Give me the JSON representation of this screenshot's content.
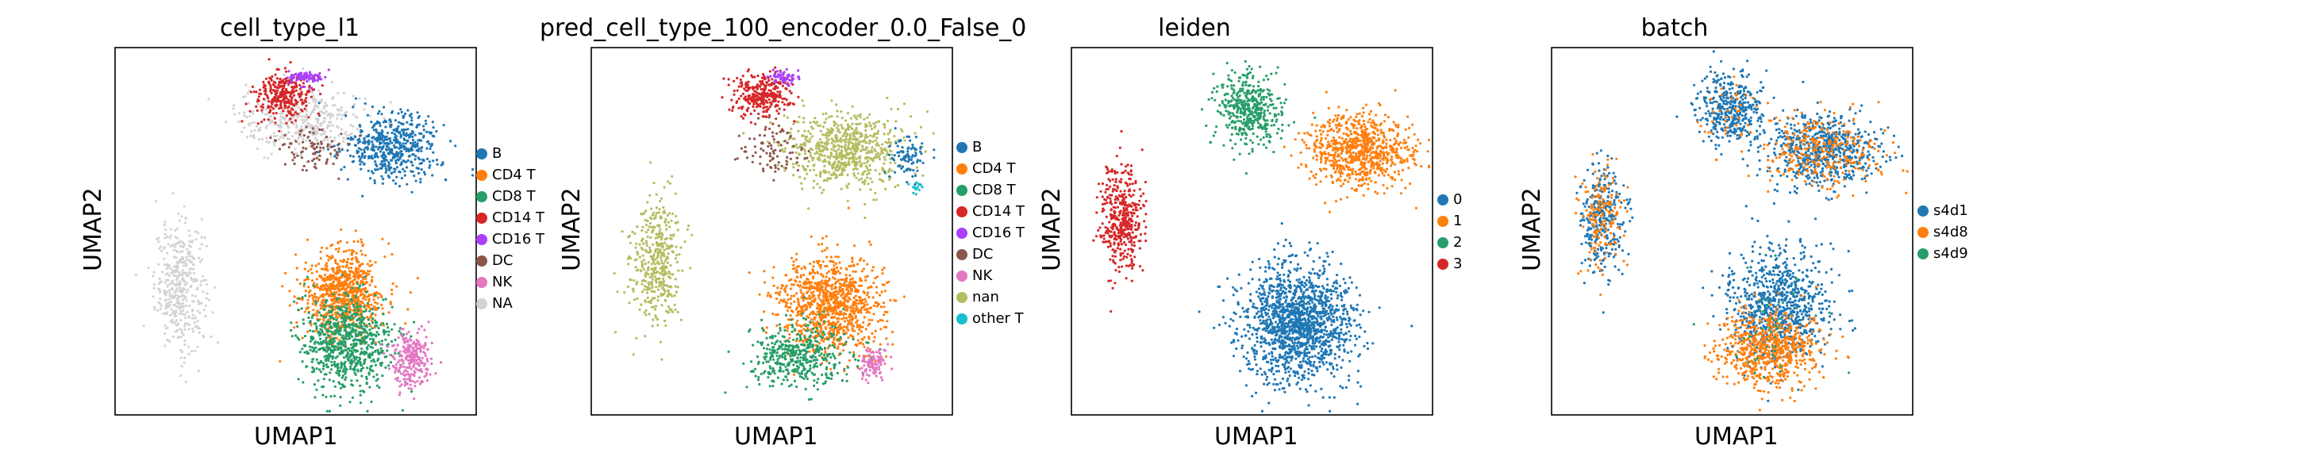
{
  "figure": {
    "background": "#ffffff"
  },
  "chart_data": [
    {
      "type": "scatter",
      "title": "cell_type_l1",
      "xlabel": "UMAP1",
      "ylabel": "UMAP2",
      "grid": false,
      "ticks": false,
      "legend_position": "right",
      "legend": [
        {
          "label": "B",
          "color": "#1f77b4"
        },
        {
          "label": "CD4 T",
          "color": "#ff7f0e"
        },
        {
          "label": "CD8 T",
          "color": "#279e68"
        },
        {
          "label": "CD14 T",
          "color": "#d62728"
        },
        {
          "label": "CD16 T",
          "color": "#aa40fc"
        },
        {
          "label": "DC",
          "color": "#8c564b"
        },
        {
          "label": "NK",
          "color": "#e377c2"
        },
        {
          "label": "NA",
          "color": "#d3d3d3"
        }
      ],
      "clusters": [
        {
          "label": "NA",
          "pos": [
            0.18,
            0.35
          ],
          "spread": [
            0.07,
            0.17
          ],
          "count": 420
        },
        {
          "label": "NA",
          "pos": [
            0.52,
            0.8
          ],
          "spread": [
            0.18,
            0.09
          ],
          "count": 380
        },
        {
          "label": "B",
          "pos": [
            0.77,
            0.73
          ],
          "spread": [
            0.13,
            0.09
          ],
          "count": 520
        },
        {
          "label": "CD14 T",
          "pos": [
            0.47,
            0.87
          ],
          "spread": [
            0.08,
            0.06
          ],
          "count": 300
        },
        {
          "label": "CD16 T",
          "pos": [
            0.53,
            0.92
          ],
          "spread": [
            0.05,
            0.02
          ],
          "count": 80
        },
        {
          "label": "DC",
          "pos": [
            0.55,
            0.73
          ],
          "spread": [
            0.1,
            0.06
          ],
          "count": 90
        },
        {
          "label": "CD4 T",
          "pos": [
            0.63,
            0.33
          ],
          "spread": [
            0.11,
            0.12
          ],
          "count": 800
        },
        {
          "label": "CD8 T",
          "pos": [
            0.64,
            0.2
          ],
          "spread": [
            0.13,
            0.12
          ],
          "count": 800
        },
        {
          "label": "NK",
          "pos": [
            0.82,
            0.15
          ],
          "spread": [
            0.05,
            0.08
          ],
          "count": 260
        }
      ]
    },
    {
      "type": "scatter",
      "title": "pred_cell_type_100_encoder_0.0_False_0",
      "xlabel": "UMAP1",
      "ylabel": "UMAP2",
      "grid": false,
      "ticks": false,
      "legend_position": "right",
      "legend": [
        {
          "label": "B",
          "color": "#1f77b4"
        },
        {
          "label": "CD4 T",
          "color": "#ff7f0e"
        },
        {
          "label": "CD8 T",
          "color": "#279e68"
        },
        {
          "label": "CD14 T",
          "color": "#d62728"
        },
        {
          "label": "CD16 T",
          "color": "#aa40fc"
        },
        {
          "label": "DC",
          "color": "#8c564b"
        },
        {
          "label": "NK",
          "color": "#e377c2"
        },
        {
          "label": "nan",
          "color": "#b5bd61"
        },
        {
          "label": "other T",
          "color": "#17becf"
        }
      ],
      "clusters": [
        {
          "label": "nan",
          "pos": [
            0.18,
            0.42
          ],
          "spread": [
            0.07,
            0.17
          ],
          "count": 420
        },
        {
          "label": "nan",
          "pos": [
            0.7,
            0.72
          ],
          "spread": [
            0.17,
            0.1
          ],
          "count": 700
        },
        {
          "label": "B",
          "pos": [
            0.88,
            0.7
          ],
          "spread": [
            0.05,
            0.06
          ],
          "count": 90
        },
        {
          "label": "CD14 T",
          "pos": [
            0.47,
            0.87
          ],
          "spread": [
            0.08,
            0.06
          ],
          "count": 300
        },
        {
          "label": "CD16 T",
          "pos": [
            0.53,
            0.92
          ],
          "spread": [
            0.04,
            0.02
          ],
          "count": 60
        },
        {
          "label": "DC",
          "pos": [
            0.5,
            0.72
          ],
          "spread": [
            0.1,
            0.07
          ],
          "count": 90
        },
        {
          "label": "CD4 T",
          "pos": [
            0.66,
            0.3
          ],
          "spread": [
            0.14,
            0.13
          ],
          "count": 1000
        },
        {
          "label": "CD8 T",
          "pos": [
            0.58,
            0.16
          ],
          "spread": [
            0.13,
            0.08
          ],
          "count": 450
        },
        {
          "label": "NK",
          "pos": [
            0.78,
            0.14
          ],
          "spread": [
            0.04,
            0.05
          ],
          "count": 100
        },
        {
          "label": "other T",
          "pos": [
            0.9,
            0.62
          ],
          "spread": [
            0.02,
            0.02
          ],
          "count": 15
        }
      ]
    },
    {
      "type": "scatter",
      "title": "leiden",
      "xlabel": "UMAP1",
      "ylabel": "UMAP2",
      "grid": false,
      "ticks": false,
      "legend_position": "right",
      "legend": [
        {
          "label": "0",
          "color": "#1f77b4"
        },
        {
          "label": "1",
          "color": "#ff7f0e"
        },
        {
          "label": "2",
          "color": "#279e68"
        },
        {
          "label": "3",
          "color": "#d62728"
        }
      ],
      "clusters": [
        {
          "label": "3",
          "pos": [
            0.14,
            0.53
          ],
          "spread": [
            0.06,
            0.15
          ],
          "count": 420
        },
        {
          "label": "2",
          "pos": [
            0.49,
            0.83
          ],
          "spread": [
            0.09,
            0.1
          ],
          "count": 450
        },
        {
          "label": "1",
          "pos": [
            0.8,
            0.72
          ],
          "spread": [
            0.14,
            0.1
          ],
          "count": 800
        },
        {
          "label": "0",
          "pos": [
            0.63,
            0.25
          ],
          "spread": [
            0.15,
            0.16
          ],
          "count": 1500
        }
      ]
    },
    {
      "type": "scatter",
      "title": "batch",
      "xlabel": "UMAP1",
      "ylabel": "UMAP2",
      "grid": false,
      "ticks": false,
      "legend_position": "right",
      "legend": [
        {
          "label": "s4d1",
          "color": "#1f77b4"
        },
        {
          "label": "s4d8",
          "color": "#ff7f0e"
        },
        {
          "label": "s4d9",
          "color": "#279e68"
        }
      ],
      "clusters": [
        {
          "label": "s4d1",
          "pos": [
            0.14,
            0.53
          ],
          "spread": [
            0.06,
            0.15
          ],
          "count": 300
        },
        {
          "label": "s4d8",
          "pos": [
            0.14,
            0.53
          ],
          "spread": [
            0.06,
            0.15
          ],
          "count": 160
        },
        {
          "label": "s4d1",
          "pos": [
            0.49,
            0.83
          ],
          "spread": [
            0.09,
            0.1
          ],
          "count": 400
        },
        {
          "label": "s4d8",
          "pos": [
            0.49,
            0.83
          ],
          "spread": [
            0.09,
            0.1
          ],
          "count": 40
        },
        {
          "label": "s4d1",
          "pos": [
            0.75,
            0.72
          ],
          "spread": [
            0.16,
            0.1
          ],
          "count": 650
        },
        {
          "label": "s4d8",
          "pos": [
            0.75,
            0.72
          ],
          "spread": [
            0.16,
            0.1
          ],
          "count": 300
        },
        {
          "label": "s4d1",
          "pos": [
            0.63,
            0.3
          ],
          "spread": [
            0.14,
            0.15
          ],
          "count": 800
        },
        {
          "label": "s4d8",
          "pos": [
            0.6,
            0.18
          ],
          "spread": [
            0.14,
            0.1
          ],
          "count": 700
        },
        {
          "label": "s4d9",
          "pos": [
            0.63,
            0.25
          ],
          "spread": [
            0.15,
            0.15
          ],
          "count": 40
        }
      ]
    }
  ]
}
